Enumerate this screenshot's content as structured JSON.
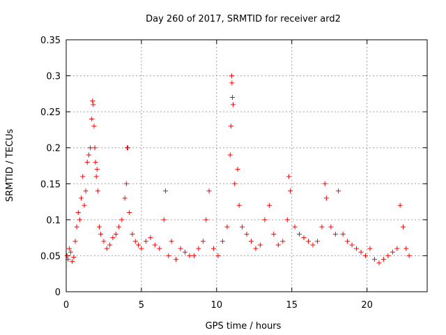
{
  "chart_data": {
    "type": "scatter",
    "title": "Day 260 of 2017, SRMTID for receiver ard2",
    "xlabel": "GPS time / hours",
    "ylabel": "SRMTID / TECUs",
    "xlim": [
      0,
      24
    ],
    "ylim": [
      0,
      0.35
    ],
    "xticks": [
      0,
      5,
      10,
      15,
      20
    ],
    "xtick_labels": [
      "0",
      "5",
      "10",
      "15",
      "20"
    ],
    "yticks": [
      0,
      0.05,
      0.1,
      0.15,
      0.2,
      0.25,
      0.3,
      0.35
    ],
    "ytick_labels": [
      "0",
      "0.05",
      "0.1",
      "0.15",
      "0.2",
      "0.25",
      "0.3",
      "0.35"
    ],
    "grid": true,
    "marker": "+",
    "color": "#ff0000",
    "series": [
      {
        "name": "SRMTID ard2",
        "x": [
          0.05,
          0.12,
          0.2,
          0.3,
          0.4,
          0.5,
          0.6,
          0.7,
          0.8,
          0.9,
          1.0,
          1.1,
          1.2,
          1.3,
          1.4,
          1.5,
          1.6,
          1.7,
          1.75,
          1.8,
          1.85,
          1.9,
          1.95,
          2.0,
          2.05,
          2.1,
          2.2,
          2.3,
          2.5,
          2.7,
          2.9,
          3.1,
          3.3,
          3.5,
          3.7,
          3.9,
          4.0,
          4.05,
          4.1,
          4.2,
          4.4,
          4.6,
          4.8,
          5.0,
          5.3,
          5.6,
          5.9,
          6.2,
          6.5,
          6.6,
          6.8,
          7.0,
          7.3,
          7.6,
          7.9,
          8.2,
          8.5,
          8.8,
          9.1,
          9.3,
          9.5,
          9.8,
          10.1,
          10.4,
          10.7,
          10.9,
          10.95,
          11.0,
          11.02,
          11.05,
          11.1,
          11.2,
          11.4,
          11.5,
          11.7,
          12.0,
          12.3,
          12.6,
          12.9,
          13.2,
          13.5,
          13.8,
          14.1,
          14.4,
          14.7,
          14.8,
          14.9,
          15.2,
          15.5,
          15.8,
          16.1,
          16.4,
          16.7,
          17.0,
          17.2,
          17.3,
          17.6,
          17.9,
          18.1,
          18.4,
          18.7,
          19.0,
          19.3,
          19.6,
          19.9,
          20.2,
          20.5,
          20.8,
          21.1,
          21.4,
          21.7,
          22.0,
          22.2,
          22.4,
          22.6,
          22.8
        ],
        "y": [
          0.05,
          0.045,
          0.06,
          0.055,
          0.042,
          0.048,
          0.07,
          0.09,
          0.11,
          0.1,
          0.13,
          0.16,
          0.12,
          0.14,
          0.18,
          0.19,
          0.2,
          0.24,
          0.265,
          0.26,
          0.23,
          0.2,
          0.18,
          0.16,
          0.17,
          0.14,
          0.09,
          0.08,
          0.07,
          0.06,
          0.065,
          0.075,
          0.08,
          0.09,
          0.1,
          0.13,
          0.15,
          0.2,
          0.2,
          0.11,
          0.08,
          0.07,
          0.065,
          0.06,
          0.07,
          0.075,
          0.065,
          0.06,
          0.1,
          0.14,
          0.05,
          0.07,
          0.045,
          0.06,
          0.055,
          0.05,
          0.05,
          0.06,
          0.07,
          0.1,
          0.14,
          0.06,
          0.05,
          0.07,
          0.09,
          0.19,
          0.23,
          0.3,
          0.29,
          0.27,
          0.26,
          0.15,
          0.17,
          0.12,
          0.09,
          0.08,
          0.07,
          0.06,
          0.065,
          0.1,
          0.12,
          0.08,
          0.065,
          0.07,
          0.1,
          0.16,
          0.14,
          0.09,
          0.08,
          0.075,
          0.07,
          0.065,
          0.07,
          0.09,
          0.15,
          0.13,
          0.09,
          0.08,
          0.14,
          0.08,
          0.07,
          0.065,
          0.06,
          0.055,
          0.05,
          0.06,
          0.045,
          0.04,
          0.045,
          0.05,
          0.055,
          0.06,
          0.12,
          0.09,
          0.06,
          0.05
        ]
      }
    ]
  }
}
